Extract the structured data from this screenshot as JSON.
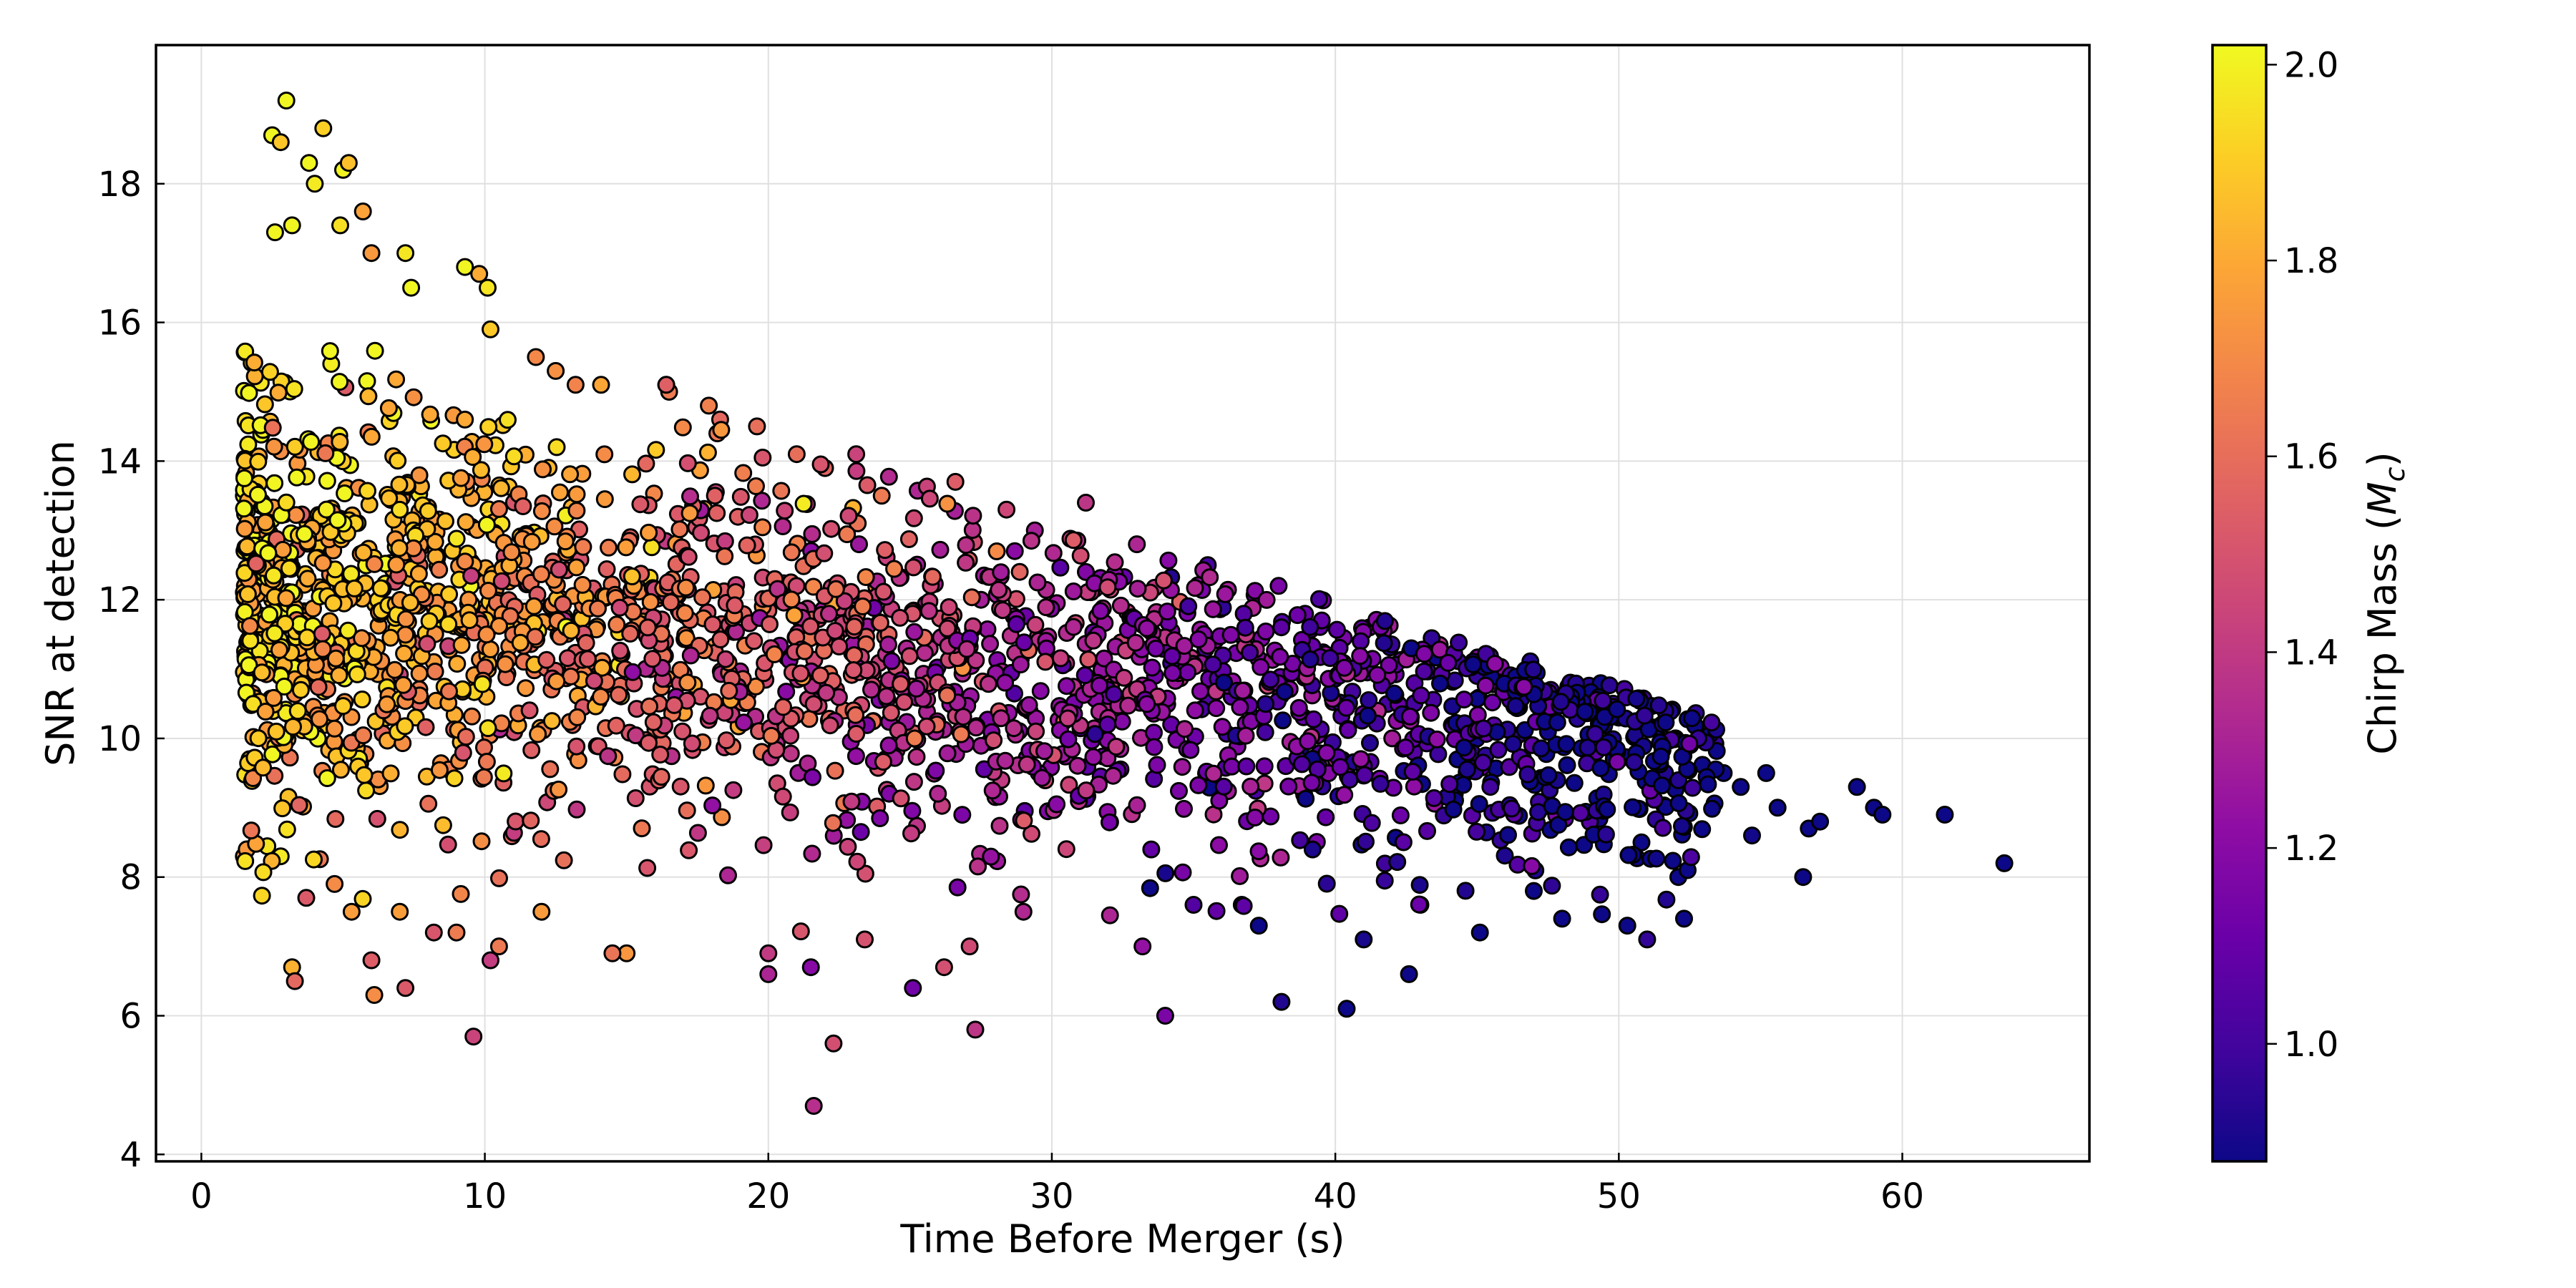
{
  "chart_data": {
    "type": "scatter",
    "title": "",
    "xlabel": "Time Before Merger (s)",
    "ylabel": "SNR at detection",
    "xlim": [
      -1.6,
      66.6
    ],
    "ylim": [
      3.9,
      20.0
    ],
    "xticks": [
      0,
      10,
      20,
      30,
      40,
      50,
      60
    ],
    "yticks": [
      4,
      6,
      8,
      10,
      12,
      14,
      16,
      18
    ],
    "grid": true,
    "legend": "none",
    "colorbar": {
      "label": "Chirp Mass ($M_c$)",
      "colormap": "plasma",
      "range": [
        0.88,
        2.02
      ],
      "ticks": [
        1.0,
        1.2,
        1.4,
        1.6,
        1.8,
        2.0
      ]
    },
    "series": [
      {
        "point_count": 2600,
        "x": [
          3.0,
          4.3,
          2.5,
          2.8,
          3.8,
          4.0,
          5.0,
          5.2,
          2.6,
          3.2,
          4.9,
          5.7,
          6.0,
          7.2,
          7.4,
          9.3,
          9.8,
          10.1,
          10.2,
          11.8,
          12.5,
          13.2,
          14.1,
          16.4,
          16.5,
          18.3,
          19.6,
          21.0,
          23.1,
          26.6,
          24.0,
          28.4,
          29.4,
          31.2,
          33.0,
          35.5,
          38.0,
          39.5,
          41.2,
          43.4,
          45.0,
          46.6,
          47.6,
          48.4,
          49.2,
          50.0,
          51.0,
          52.0,
          53.0,
          53.7,
          54.3,
          55.2,
          55.6,
          56.7,
          57.1,
          58.4,
          59.0,
          59.3,
          61.5,
          63.6,
          54.7,
          56.5,
          52.3,
          51.0,
          50.3,
          50.8,
          52.1,
          43.0,
          42.6,
          45.1,
          48.0,
          47.0,
          40.4,
          38.1,
          34.0,
          37.3,
          41.0,
          36.7,
          35.0,
          33.2,
          29.0,
          27.3,
          26.2,
          27.1,
          25.1,
          23.4,
          22.3,
          21.6,
          21.5,
          20.0,
          20.0,
          15.0,
          14.5,
          12.0,
          10.5,
          10.2,
          9.6,
          9.0,
          8.2,
          6.1,
          6.0,
          7.0,
          7.2,
          5.3,
          4.7,
          3.2,
          3.3,
          2.8,
          3.7,
          1.7,
          1.5,
          1.6,
          1.9,
          2.3,
          2.5,
          1.6,
          1.7,
          1.5,
          1.8,
          16.4,
          17.9,
          18.2,
          22.0,
          23.2,
          27.5,
          31.2
        ],
        "y": [
          19.2,
          18.8,
          18.7,
          18.6,
          18.3,
          18.0,
          18.2,
          18.3,
          17.3,
          17.4,
          17.4,
          17.6,
          17.0,
          17.0,
          16.5,
          16.8,
          16.7,
          16.5,
          15.9,
          15.5,
          15.3,
          15.1,
          15.1,
          15.1,
          15.0,
          14.6,
          14.5,
          14.1,
          14.1,
          13.7,
          13.5,
          13.3,
          13.0,
          13.4,
          12.8,
          12.5,
          12.2,
          12.0,
          11.6,
          11.3,
          10.9,
          10.9,
          10.7,
          10.5,
          10.6,
          10.3,
          10.2,
          10.0,
          10.0,
          9.5,
          9.3,
          9.5,
          9.0,
          8.7,
          8.8,
          9.3,
          9.0,
          8.9,
          8.9,
          8.2,
          8.6,
          8.0,
          7.4,
          7.1,
          7.3,
          8.5,
          8.0,
          7.6,
          6.6,
          7.2,
          7.4,
          7.8,
          6.1,
          6.2,
          6.0,
          7.3,
          7.1,
          7.6,
          7.6,
          7.0,
          7.5,
          5.8,
          6.7,
          7.0,
          6.4,
          7.1,
          5.6,
          4.7,
          6.7,
          6.6,
          6.9,
          6.9,
          6.9,
          7.5,
          7.0,
          6.8,
          5.7,
          7.2,
          7.2,
          6.3,
          6.8,
          7.5,
          6.4,
          7.5,
          7.9,
          6.7,
          6.5,
          8.3,
          7.7,
          9.7,
          8.3,
          8.4,
          11.0,
          11.5,
          12.0,
          11.1,
          12.2,
          13.5,
          13.0,
          15.1,
          14.8,
          14.4,
          13.9,
          12.8,
          12.0,
          12.4
        ]
      }
    ]
  }
}
